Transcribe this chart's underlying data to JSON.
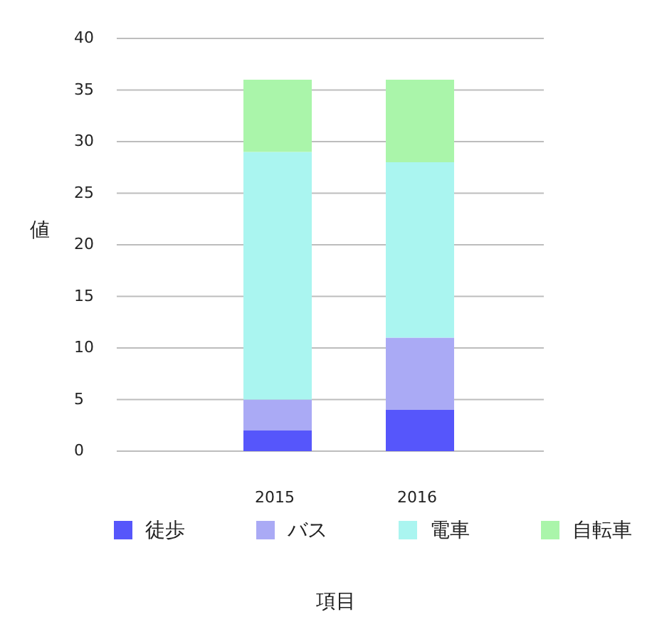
{
  "chart_data": {
    "type": "bar",
    "stacked": true,
    "categories": [
      "2015",
      "2016"
    ],
    "series": [
      {
        "name": "徒歩",
        "color": "#5656fb",
        "values": [
          2,
          4
        ]
      },
      {
        "name": "バス",
        "color": "#aaaaf5",
        "values": [
          3,
          7
        ]
      },
      {
        "name": "電車",
        "color": "#aaf5f0",
        "values": [
          24,
          17
        ]
      },
      {
        "name": "自転車",
        "color": "#aaf5aa",
        "values": [
          7,
          8
        ]
      }
    ],
    "xlabel": "項目",
    "ylabel": "値",
    "ylim": [
      0,
      40
    ],
    "yticks": [
      0,
      5,
      10,
      15,
      20,
      25,
      30,
      35,
      40
    ],
    "grid": "y",
    "legend": "bottom"
  }
}
